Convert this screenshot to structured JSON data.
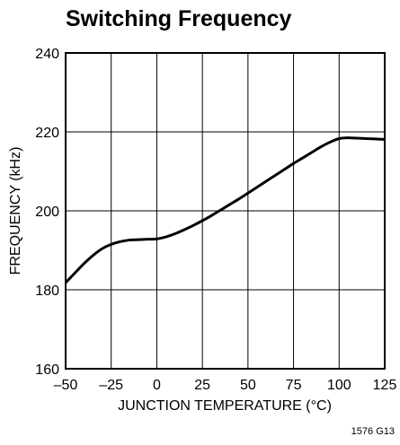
{
  "chart_data": {
    "type": "line",
    "title": "Switching Frequency",
    "xlabel": "JUNCTION TEMPERATURE (°C)",
    "ylabel": "FREQUENCY (kHz)",
    "xlim": [
      -50,
      125
    ],
    "ylim": [
      160,
      240
    ],
    "x_ticks": [
      -50,
      -25,
      0,
      25,
      50,
      75,
      100,
      125
    ],
    "y_ticks": [
      160,
      180,
      200,
      220,
      240
    ],
    "x_tick_labels": [
      "–50",
      "–25",
      "0",
      "25",
      "50",
      "75",
      "100",
      "125"
    ],
    "y_tick_labels": [
      "160",
      "180",
      "200",
      "220",
      "240"
    ],
    "grid": true,
    "series": [
      {
        "x": [
          -50,
          -45,
          -40,
          -35,
          -30,
          -25,
          -20,
          -15,
          -10,
          -5,
          0,
          5,
          10,
          15,
          20,
          25,
          30,
          35,
          40,
          45,
          50,
          55,
          60,
          65,
          70,
          75,
          80,
          85,
          90,
          95,
          100,
          105,
          110,
          115,
          120,
          125
        ],
        "values": [
          181.8,
          184.2,
          186.6,
          188.7,
          190.4,
          191.5,
          192.2,
          192.6,
          192.7,
          192.8,
          192.9,
          193.4,
          194.2,
          195.2,
          196.3,
          197.5,
          198.8,
          200.2,
          201.6,
          203.0,
          204.5,
          206.0,
          207.5,
          209.0,
          210.5,
          212.0,
          213.4,
          214.8,
          216.2,
          217.4,
          218.3,
          218.5,
          218.4,
          218.3,
          218.2,
          218.1
        ]
      }
    ],
    "figure_id": "1576 G13"
  },
  "colors": {
    "line": "#000000",
    "grid": "#000000",
    "background": "#ffffff"
  }
}
